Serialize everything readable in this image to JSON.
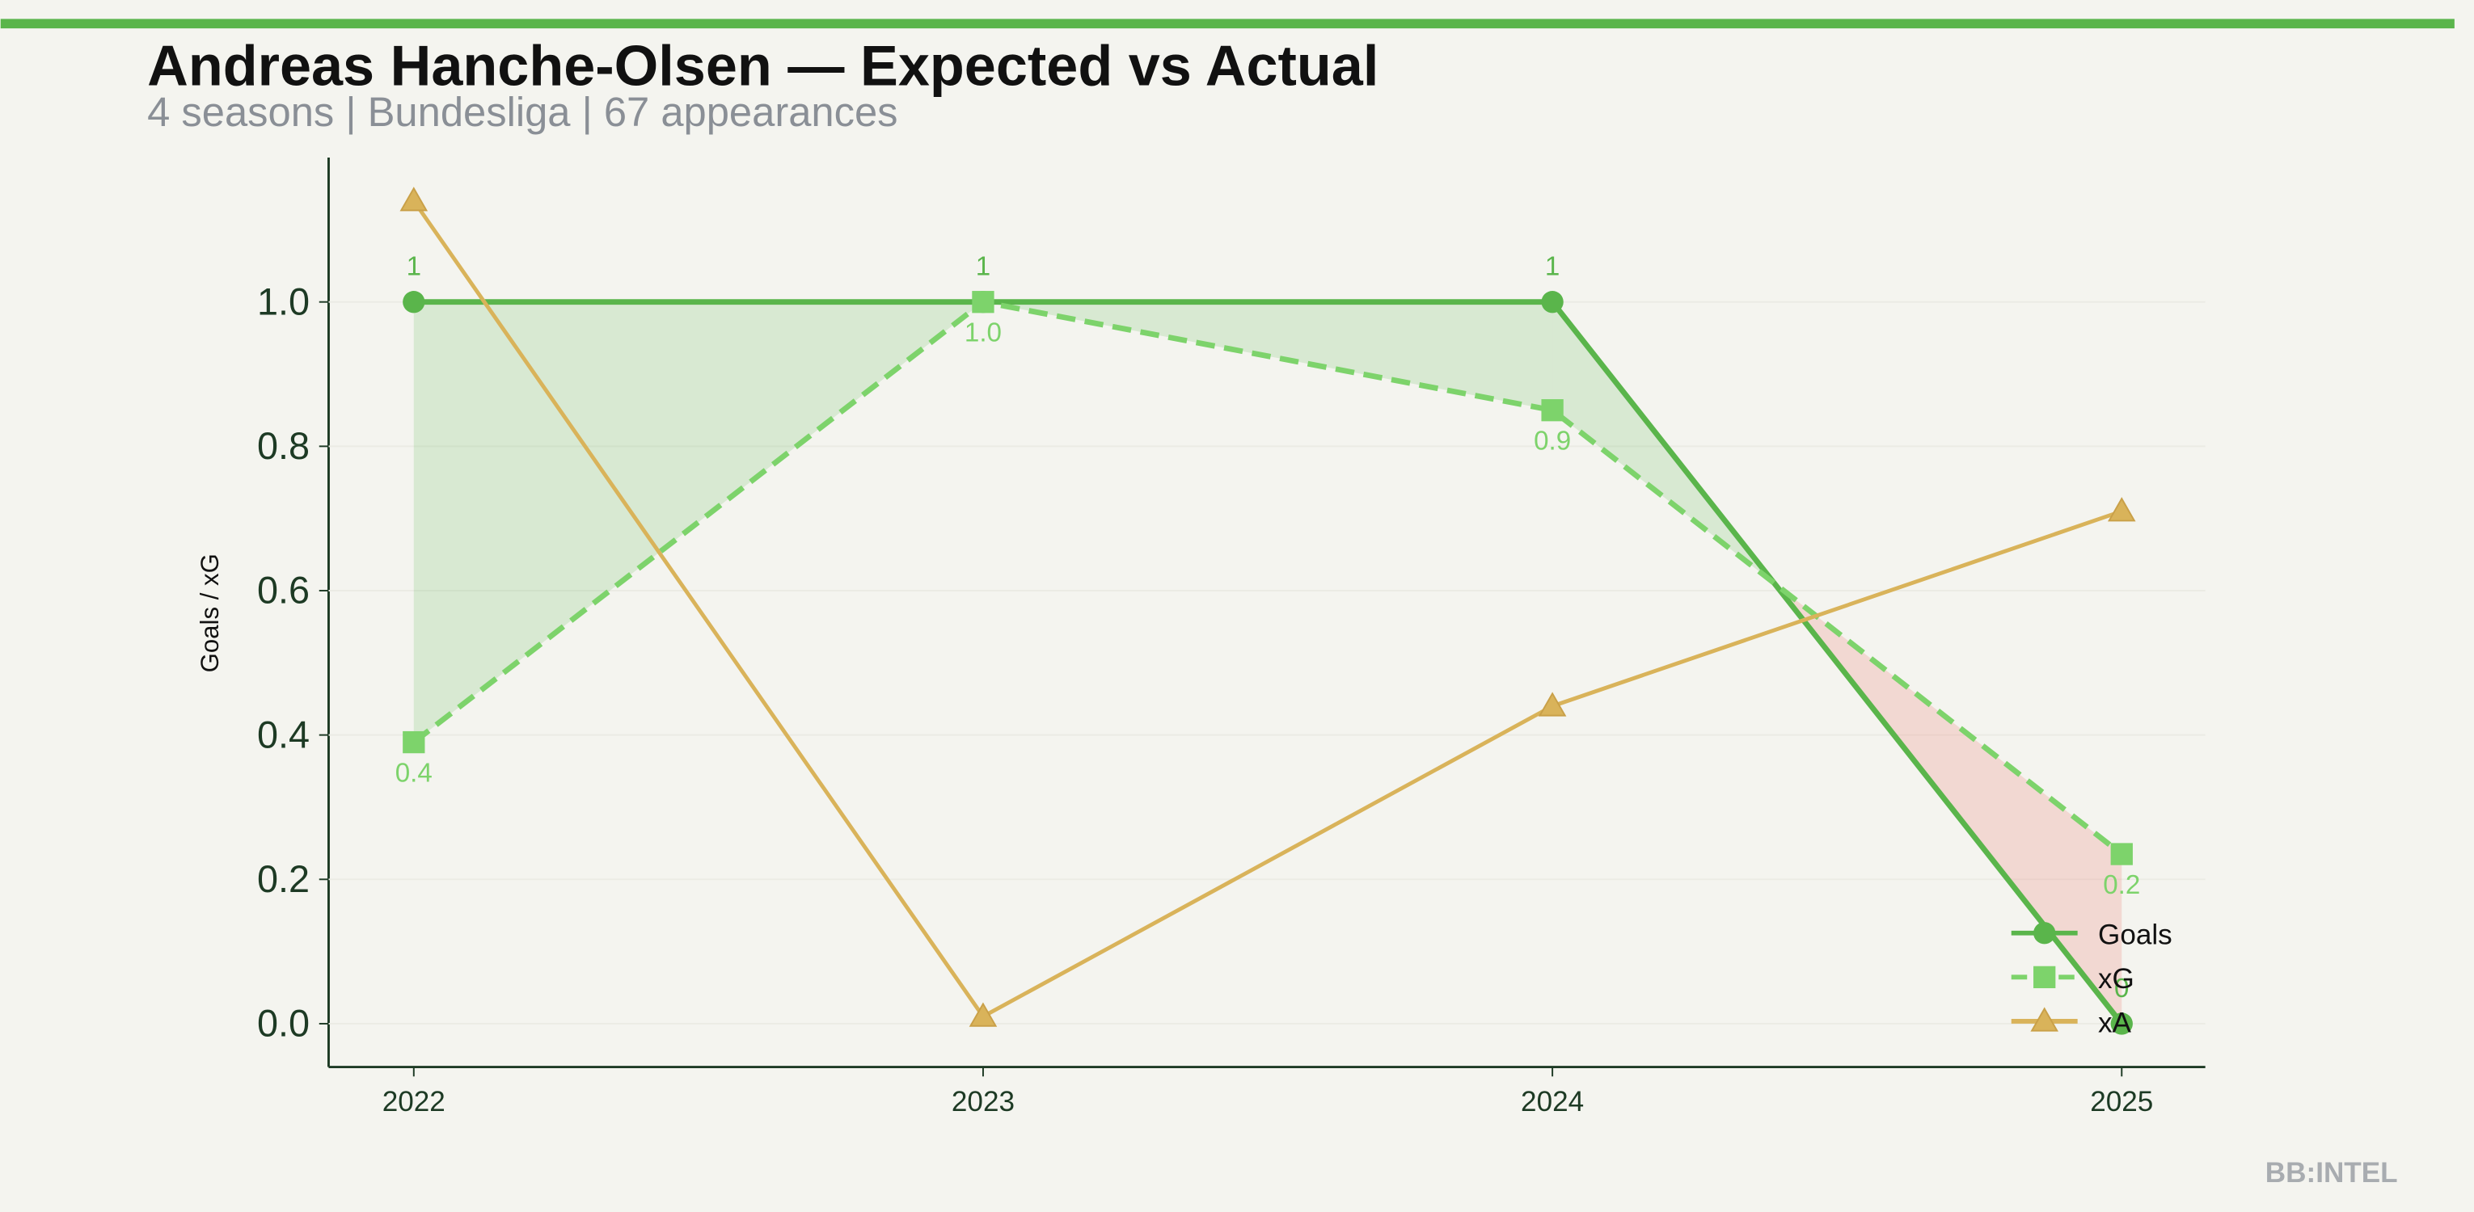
{
  "chart_data": {
    "type": "line",
    "title": "Andreas Hanche-Olsen — Expected vs Actual",
    "subtitle": "4 seasons | Bundesliga | 67 appearances",
    "ylabel": "Goals / xG",
    "watermark": "BB:INTEL",
    "categories": [
      "2022",
      "2023",
      "2024",
      "2025"
    ],
    "series": [
      {
        "name": "Goals",
        "color": "#5ab54b",
        "marker": "circle",
        "dash": false,
        "values": [
          1,
          1,
          1,
          0
        ]
      },
      {
        "name": "xG",
        "color": "#7dd36b",
        "marker": "square",
        "dash": true,
        "values": [
          0.39,
          1.0,
          0.85,
          0.235
        ],
        "value_labels": [
          "0.4",
          "1.0",
          "0.9",
          "0.2"
        ]
      },
      {
        "name": "xA",
        "color": "#d9b35a",
        "marker": "triangle",
        "dash": false,
        "values": [
          1.14,
          0.01,
          0.44,
          0.71
        ]
      }
    ],
    "ylim": [
      -0.06,
      1.2
    ],
    "yticks": [
      {
        "value": 0,
        "label": "0.0"
      },
      0.2,
      0.4,
      0.6,
      0.8,
      {
        "value": 1,
        "label": "1.0"
      }
    ],
    "grid": true,
    "legend": "lower right"
  }
}
